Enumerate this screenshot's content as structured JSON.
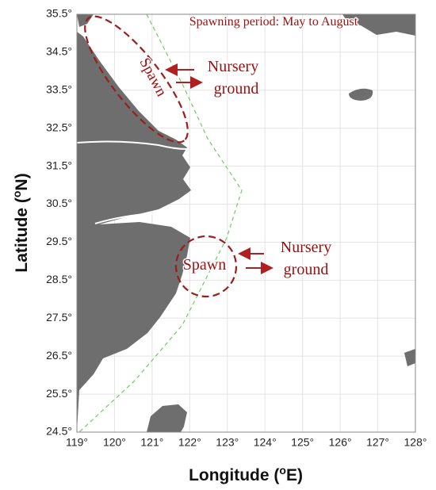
{
  "map": {
    "title": "Spawning period: May to August",
    "annotations": [
      {
        "spawn": "Spawn",
        "nursery": [
          "Nursery",
          "ground"
        ]
      },
      {
        "spawn": "Spawn",
        "nursery": [
          "Nursery",
          "ground"
        ]
      }
    ],
    "x_label": [
      "Longitude (",
      "o",
      "E)"
    ],
    "y_label": [
      "Latitude (",
      "o",
      "N)"
    ],
    "xlim": [
      119,
      128
    ],
    "ylim": [
      24.5,
      35.5
    ],
    "xticks": [
      {
        "value": 119,
        "label": "119°"
      },
      {
        "value": 120,
        "label": "120°"
      },
      {
        "value": 121,
        "label": "121°"
      },
      {
        "value": 122,
        "label": "122°"
      },
      {
        "value": 123,
        "label": "123°"
      },
      {
        "value": 124,
        "label": "124°"
      },
      {
        "value": 125,
        "label": "125°"
      },
      {
        "value": 126,
        "label": "126°"
      },
      {
        "value": 127,
        "label": "127°"
      },
      {
        "value": 128,
        "label": "128°"
      }
    ],
    "yticks": [
      {
        "value": 24.5,
        "label": "24.5°"
      },
      {
        "value": 25.5,
        "label": "25.5°"
      },
      {
        "value": 26.5,
        "label": "26.5°"
      },
      {
        "value": 27.5,
        "label": "27.5°"
      },
      {
        "value": 28.5,
        "label": "28.5°"
      },
      {
        "value": 29.5,
        "label": "29.5°"
      },
      {
        "value": 30.5,
        "label": "30.5°"
      },
      {
        "value": 31.5,
        "label": "31.5°"
      },
      {
        "value": 32.5,
        "label": "32.5°"
      },
      {
        "value": 33.5,
        "label": "33.5°"
      },
      {
        "value": 34.5,
        "label": "34.5°"
      },
      {
        "value": 35.5,
        "label": "35.5°"
      }
    ],
    "grid": true
  }
}
